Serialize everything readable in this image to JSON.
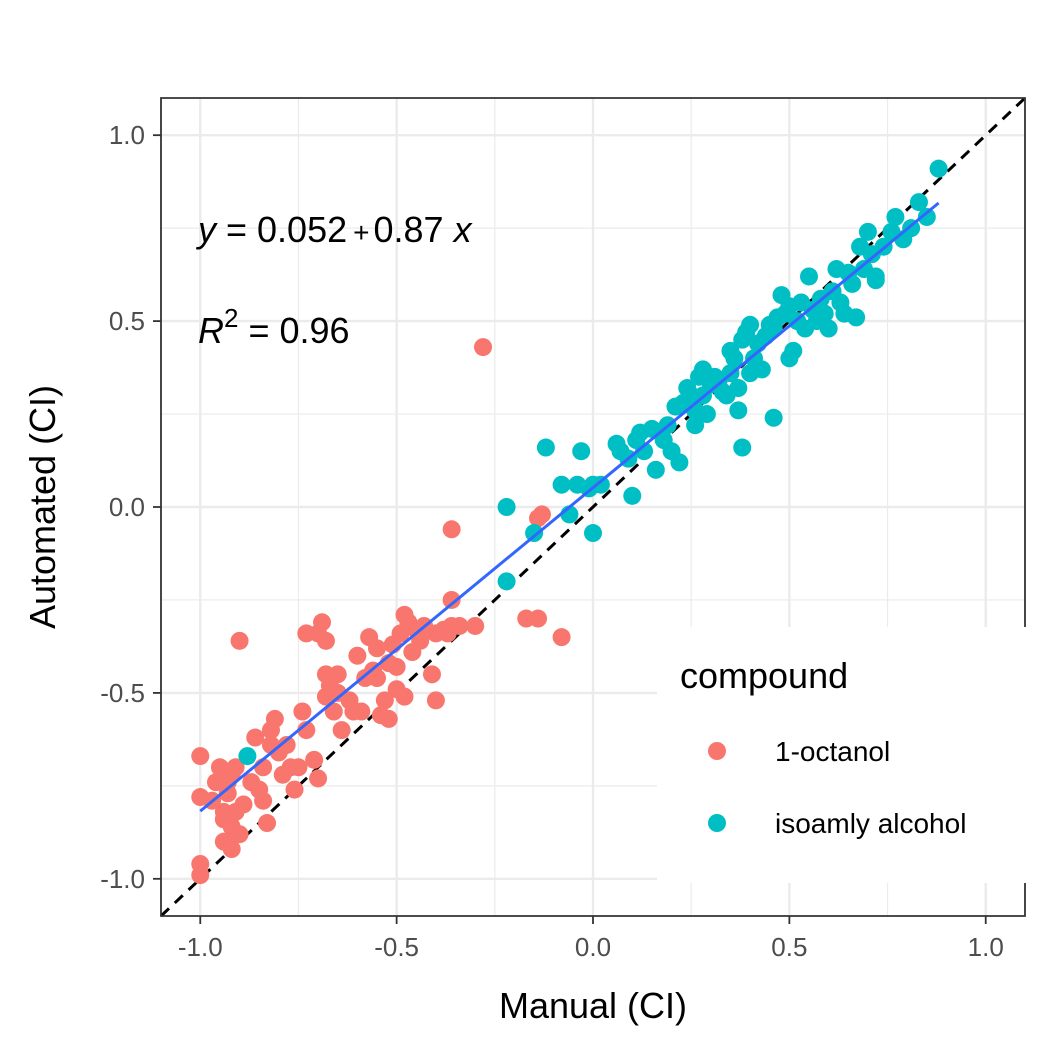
{
  "chart_data": {
    "type": "scatter",
    "xlabel": "Manual (CI)",
    "ylabel": "Automated (CI)",
    "xlim": [
      -1.1,
      1.1
    ],
    "ylim": [
      -1.1,
      1.1
    ],
    "x_ticks": [
      -1.0,
      -0.5,
      0.0,
      0.5,
      1.0
    ],
    "y_ticks": [
      -1.0,
      -0.5,
      0.0,
      0.5,
      1.0
    ],
    "x_tick_labels": [
      "-1.0",
      "-0.5",
      "0.0",
      "0.5",
      "1.0"
    ],
    "y_tick_labels": [
      "-1.0",
      "-0.5",
      "0.0",
      "0.5",
      "1.0"
    ],
    "grid": true,
    "legend": {
      "title": "compound",
      "position": "bottom-right",
      "entries": [
        "1-octanol",
        "isoamly alcohol"
      ]
    },
    "annotations": {
      "equation": {
        "y_part": "y",
        "eq_part": " = 0.052",
        "plus": "+",
        "rest": "0.87",
        "x_part": "x"
      },
      "r_squared": {
        "r": "R",
        "sup": "2",
        "value": " = 0.96"
      }
    },
    "fit_line": {
      "intercept": 0.052,
      "slope": 0.87,
      "x_range": [
        -1.0,
        0.88
      ],
      "color": "#3366ff"
    },
    "identity_line": {
      "slope": 1,
      "intercept": 0,
      "style": "dashed",
      "color": "#000000"
    },
    "series": [
      {
        "name": "1-octanol",
        "color": "#f8766d",
        "points": [
          [
            -1.0,
            -0.99
          ],
          [
            -1.0,
            -0.96
          ],
          [
            -1.0,
            -0.78
          ],
          [
            -1.0,
            -0.67
          ],
          [
            -0.97,
            -0.79
          ],
          [
            -0.96,
            -0.74
          ],
          [
            -0.95,
            -0.7
          ],
          [
            -0.94,
            -0.84
          ],
          [
            -0.94,
            -0.82
          ],
          [
            -0.94,
            -0.9
          ],
          [
            -0.93,
            -0.74
          ],
          [
            -0.93,
            -0.77
          ],
          [
            -0.92,
            -0.86
          ],
          [
            -0.92,
            -0.92
          ],
          [
            -0.92,
            -0.72
          ],
          [
            -0.91,
            -0.7
          ],
          [
            -0.91,
            -0.82
          ],
          [
            -0.9,
            -0.88
          ],
          [
            -0.9,
            -0.36
          ],
          [
            -0.89,
            -0.8
          ],
          [
            -0.87,
            -0.74
          ],
          [
            -0.86,
            -0.62
          ],
          [
            -0.85,
            -0.76
          ],
          [
            -0.84,
            -0.79
          ],
          [
            -0.84,
            -0.7
          ],
          [
            -0.83,
            -0.85
          ],
          [
            -0.82,
            -0.64
          ],
          [
            -0.82,
            -0.6
          ],
          [
            -0.81,
            -0.57
          ],
          [
            -0.8,
            -0.66
          ],
          [
            -0.79,
            -0.72
          ],
          [
            -0.78,
            -0.64
          ],
          [
            -0.77,
            -0.7
          ],
          [
            -0.76,
            -0.76
          ],
          [
            -0.75,
            -0.7
          ],
          [
            -0.74,
            -0.55
          ],
          [
            -0.73,
            -0.6
          ],
          [
            -0.73,
            -0.34
          ],
          [
            -0.71,
            -0.68
          ],
          [
            -0.7,
            -0.73
          ],
          [
            -0.7,
            -0.34
          ],
          [
            -0.69,
            -0.31
          ],
          [
            -0.68,
            -0.36
          ],
          [
            -0.68,
            -0.45
          ],
          [
            -0.68,
            -0.51
          ],
          [
            -0.67,
            -0.48
          ],
          [
            -0.66,
            -0.55
          ],
          [
            -0.65,
            -0.5
          ],
          [
            -0.65,
            -0.45
          ],
          [
            -0.64,
            -0.6
          ],
          [
            -0.62,
            -0.52
          ],
          [
            -0.61,
            -0.55
          ],
          [
            -0.6,
            -0.4
          ],
          [
            -0.59,
            -0.55
          ],
          [
            -0.58,
            -0.46
          ],
          [
            -0.57,
            -0.35
          ],
          [
            -0.56,
            -0.44
          ],
          [
            -0.55,
            -0.46
          ],
          [
            -0.55,
            -0.38
          ],
          [
            -0.54,
            -0.56
          ],
          [
            -0.53,
            -0.52
          ],
          [
            -0.52,
            -0.42
          ],
          [
            -0.52,
            -0.57
          ],
          [
            -0.51,
            -0.37
          ],
          [
            -0.5,
            -0.43
          ],
          [
            -0.5,
            -0.49
          ],
          [
            -0.49,
            -0.34
          ],
          [
            -0.48,
            -0.29
          ],
          [
            -0.48,
            -0.51
          ],
          [
            -0.47,
            -0.31
          ],
          [
            -0.46,
            -0.39
          ],
          [
            -0.45,
            -0.33
          ],
          [
            -0.44,
            -0.36
          ],
          [
            -0.43,
            -0.32
          ],
          [
            -0.41,
            -0.45
          ],
          [
            -0.4,
            -0.52
          ],
          [
            -0.4,
            -0.34
          ],
          [
            -0.38,
            -0.33
          ],
          [
            -0.37,
            -0.34
          ],
          [
            -0.36,
            -0.32
          ],
          [
            -0.36,
            -0.25
          ],
          [
            -0.36,
            -0.06
          ],
          [
            -0.34,
            -0.32
          ],
          [
            -0.3,
            -0.32
          ],
          [
            -0.28,
            0.43
          ],
          [
            -0.17,
            -0.3
          ],
          [
            -0.14,
            -0.3
          ],
          [
            -0.14,
            -0.03
          ],
          [
            -0.13,
            -0.02
          ],
          [
            -0.08,
            -0.35
          ]
        ]
      },
      {
        "name": "isoamly alcohol",
        "color": "#00bfc4",
        "points": [
          [
            -0.88,
            -0.67
          ],
          [
            -0.22,
            -0.2
          ],
          [
            -0.22,
            0.0
          ],
          [
            -0.15,
            -0.07
          ],
          [
            -0.12,
            0.16
          ],
          [
            -0.08,
            0.06
          ],
          [
            -0.06,
            -0.02
          ],
          [
            -0.04,
            0.06
          ],
          [
            -0.03,
            0.15
          ],
          [
            -0.01,
            0.05
          ],
          [
            0.0,
            -0.07
          ],
          [
            0.0,
            0.06
          ],
          [
            0.02,
            0.06
          ],
          [
            0.06,
            0.17
          ],
          [
            0.07,
            0.15
          ],
          [
            0.09,
            0.13
          ],
          [
            0.1,
            0.03
          ],
          [
            0.11,
            0.18
          ],
          [
            0.12,
            0.2
          ],
          [
            0.13,
            0.15
          ],
          [
            0.15,
            0.21
          ],
          [
            0.16,
            0.1
          ],
          [
            0.18,
            0.18
          ],
          [
            0.19,
            0.22
          ],
          [
            0.2,
            0.15
          ],
          [
            0.21,
            0.27
          ],
          [
            0.22,
            0.12
          ],
          [
            0.23,
            0.28
          ],
          [
            0.24,
            0.32
          ],
          [
            0.25,
            0.3
          ],
          [
            0.26,
            0.26
          ],
          [
            0.26,
            0.22
          ],
          [
            0.27,
            0.35
          ],
          [
            0.28,
            0.37
          ],
          [
            0.28,
            0.3
          ],
          [
            0.29,
            0.25
          ],
          [
            0.3,
            0.33
          ],
          [
            0.31,
            0.35
          ],
          [
            0.32,
            0.34
          ],
          [
            0.33,
            0.31
          ],
          [
            0.34,
            0.3
          ],
          [
            0.35,
            0.36
          ],
          [
            0.35,
            0.42
          ],
          [
            0.36,
            0.4
          ],
          [
            0.37,
            0.26
          ],
          [
            0.37,
            0.32
          ],
          [
            0.38,
            0.45
          ],
          [
            0.38,
            0.16
          ],
          [
            0.39,
            0.47
          ],
          [
            0.4,
            0.49
          ],
          [
            0.4,
            0.36
          ],
          [
            0.41,
            0.4
          ],
          [
            0.42,
            0.44
          ],
          [
            0.43,
            0.37
          ],
          [
            0.44,
            0.46
          ],
          [
            0.45,
            0.49
          ],
          [
            0.46,
            0.48
          ],
          [
            0.46,
            0.24
          ],
          [
            0.47,
            0.51
          ],
          [
            0.48,
            0.57
          ],
          [
            0.49,
            0.52
          ],
          [
            0.5,
            0.54
          ],
          [
            0.5,
            0.4
          ],
          [
            0.51,
            0.42
          ],
          [
            0.52,
            0.5
          ],
          [
            0.53,
            0.55
          ],
          [
            0.54,
            0.48
          ],
          [
            0.55,
            0.62
          ],
          [
            0.56,
            0.53
          ],
          [
            0.57,
            0.5
          ],
          [
            0.58,
            0.56
          ],
          [
            0.59,
            0.52
          ],
          [
            0.6,
            0.48
          ],
          [
            0.61,
            0.58
          ],
          [
            0.62,
            0.64
          ],
          [
            0.63,
            0.55
          ],
          [
            0.64,
            0.52
          ],
          [
            0.65,
            0.63
          ],
          [
            0.66,
            0.6
          ],
          [
            0.67,
            0.51
          ],
          [
            0.68,
            0.7
          ],
          [
            0.69,
            0.64
          ],
          [
            0.7,
            0.74
          ],
          [
            0.71,
            0.68
          ],
          [
            0.72,
            0.62
          ],
          [
            0.72,
            0.61
          ],
          [
            0.74,
            0.7
          ],
          [
            0.76,
            0.74
          ],
          [
            0.77,
            0.78
          ],
          [
            0.79,
            0.72
          ],
          [
            0.81,
            0.75
          ],
          [
            0.83,
            0.82
          ],
          [
            0.85,
            0.78
          ],
          [
            0.88,
            0.91
          ]
        ]
      }
    ]
  }
}
